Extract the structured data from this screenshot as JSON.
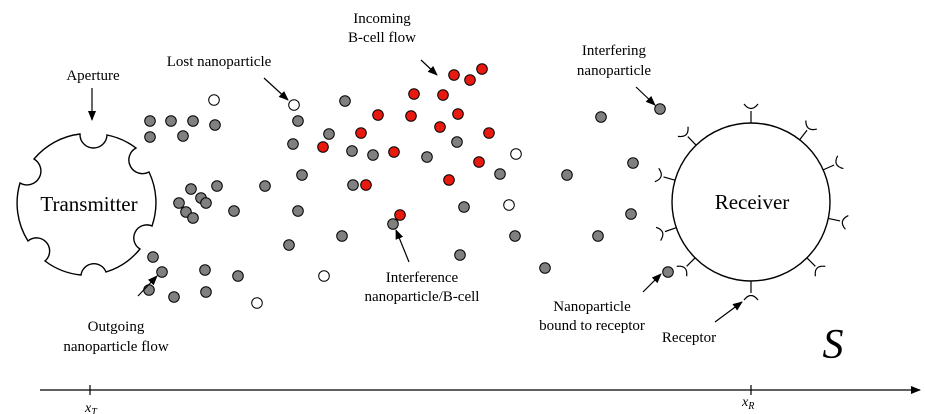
{
  "transmitter": {
    "label": "Transmitter"
  },
  "receiver": {
    "label": "Receiver"
  },
  "space_label": "S",
  "labels": {
    "aperture": "Aperture",
    "lost": "Lost nanoparticle",
    "incoming_1": "Incoming",
    "incoming_2": "B-cell flow",
    "interfering_1": "Interfering",
    "interfering_2": "nanoparticle",
    "interference_1": "Interference",
    "interference_2": "nanoparticle/B-cell",
    "outgoing_1": "Outgoing",
    "outgoing_2": "nanoparticle flow",
    "bound_1": "Nanoparticle",
    "bound_2": "bound to receptor",
    "receptor": "Receptor"
  },
  "axis": {
    "x_T_main": "x",
    "x_T_sub": "T",
    "x_R_main": "x",
    "x_R_sub": "R"
  },
  "colors": {
    "nanoparticle": "#808080",
    "bcell": "#e8190f",
    "lost": "#ffffff",
    "stroke": "#000000"
  }
}
